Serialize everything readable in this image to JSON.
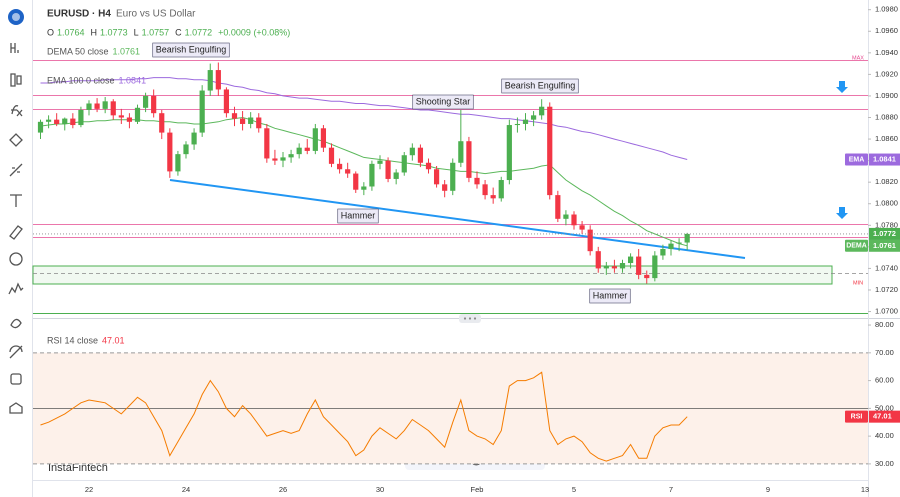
{
  "header": {
    "title": "EURUSD · H4",
    "subtitle": "Euro vs US Dollar",
    "ohlc_labels": [
      "O",
      "H",
      "L",
      "C"
    ],
    "change": "+0.0009 (+0.08%)",
    "watermark": "InstaFintech"
  },
  "chart_data": [
    {
      "type": "candlestick",
      "categories": [
        null,
        null,
        null,
        null,
        null,
        null,
        "22",
        null,
        null,
        null,
        null,
        null,
        null,
        null,
        null,
        null,
        null,
        null,
        "24",
        null,
        null,
        null,
        null,
        null,
        null,
        null,
        null,
        null,
        null,
        null,
        "26",
        null,
        null,
        null,
        null,
        null,
        null,
        null,
        null,
        null,
        null,
        null,
        "30",
        null,
        null,
        null,
        null,
        null,
        null,
        null,
        null,
        null,
        null,
        null,
        "Feb",
        null,
        null,
        null,
        null,
        null,
        null,
        null,
        null,
        null,
        null,
        null,
        "5",
        null,
        null,
        null,
        null,
        null,
        null,
        null,
        null,
        null,
        null,
        null,
        "7",
        null,
        null,
        null,
        null,
        null,
        null,
        null,
        null,
        null,
        null,
        null,
        "9",
        null,
        null,
        null,
        null,
        null,
        null,
        null,
        null,
        null,
        null,
        null,
        "13"
      ],
      "open": [
        1.0866,
        1.0876,
        1.0878,
        1.0874,
        1.0879,
        1.0873,
        1.0887,
        1.0893,
        1.0888,
        1.0895,
        1.0882,
        1.088,
        1.0876,
        1.0889,
        1.09,
        1.0884,
        1.0866,
        1.083,
        1.0846,
        1.0855,
        1.0866,
        1.0905,
        1.0924,
        1.0906,
        1.0884,
        1.0879,
        1.0874,
        1.088,
        1.087,
        1.0842,
        1.084,
        1.0843,
        1.0846,
        1.0852,
        1.0849,
        1.087,
        1.0852,
        1.0837,
        1.0832,
        1.0828,
        1.0813,
        1.0816,
        1.0837,
        1.084,
        1.0823,
        1.0829,
        1.0845,
        1.0852,
        1.0838,
        1.0832,
        1.0818,
        1.0812,
        1.0838,
        1.0858,
        1.0824,
        1.0818,
        1.0808,
        1.0805,
        1.0822,
        1.0873,
        1.0874,
        1.0878,
        1.0882,
        1.089,
        1.0808,
        1.0786,
        1.079,
        1.078,
        1.0776,
        1.0756,
        1.074,
        1.0742,
        1.074,
        1.0745,
        1.0751,
        1.0734,
        1.0731,
        1.0752,
        1.0758,
        1.0763,
        1.0764,
        null,
        null,
        null,
        null,
        null,
        null,
        null,
        null,
        null,
        null,
        null,
        null,
        null,
        null,
        null,
        null,
        null,
        null,
        null,
        null,
        null,
        null
      ],
      "high": [
        1.0878,
        1.0882,
        1.0884,
        1.088,
        1.0884,
        1.089,
        1.0896,
        1.0898,
        1.0899,
        1.0897,
        1.0888,
        1.0884,
        1.0892,
        1.0903,
        1.0906,
        1.0887,
        1.087,
        1.0849,
        1.0858,
        1.087,
        1.091,
        1.093,
        1.0931,
        1.0908,
        1.089,
        1.0886,
        1.0885,
        1.0884,
        1.0874,
        1.085,
        1.0848,
        1.085,
        1.0856,
        1.086,
        1.0874,
        1.0873,
        1.0856,
        1.0842,
        1.0838,
        1.083,
        1.082,
        1.084,
        1.0845,
        1.0843,
        1.0832,
        1.0848,
        1.0856,
        1.0855,
        1.0842,
        1.0835,
        1.0822,
        1.0842,
        1.0887,
        1.0862,
        1.083,
        1.0822,
        1.0815,
        1.0825,
        1.0878,
        1.088,
        1.0884,
        1.0886,
        1.0897,
        1.0894,
        1.0812,
        1.0794,
        1.0793,
        1.0784,
        1.078,
        1.076,
        1.0746,
        1.0748,
        1.0748,
        1.0754,
        1.0758,
        1.0738,
        1.0756,
        1.0762,
        1.0766,
        1.0768,
        1.0773,
        null,
        null,
        null,
        null,
        null,
        null,
        null,
        null,
        null,
        null,
        null,
        null,
        null,
        null,
        null,
        null,
        null,
        null,
        null,
        null,
        null,
        null
      ],
      "low": [
        1.086,
        1.087,
        1.0872,
        1.0868,
        1.087,
        1.0871,
        1.0882,
        1.0885,
        1.0884,
        1.0878,
        1.0874,
        1.087,
        1.0874,
        1.0885,
        1.088,
        1.086,
        1.0824,
        1.0826,
        1.0842,
        1.085,
        1.0862,
        1.09,
        1.09,
        1.088,
        1.0872,
        1.0868,
        1.087,
        1.0866,
        1.0838,
        1.0836,
        1.0834,
        1.0838,
        1.0842,
        1.0846,
        1.0846,
        1.0848,
        1.0834,
        1.0828,
        1.0824,
        1.081,
        1.0808,
        1.0812,
        1.0832,
        1.082,
        1.0818,
        1.0826,
        1.084,
        1.0834,
        1.0828,
        1.0815,
        1.0806,
        1.0808,
        1.0834,
        1.082,
        1.0814,
        1.0804,
        1.08,
        1.0802,
        1.0818,
        1.0866,
        1.0868,
        1.0872,
        1.0878,
        1.0804,
        1.0783,
        1.078,
        1.0776,
        1.0772,
        1.0752,
        1.0736,
        1.0734,
        1.0736,
        1.0736,
        1.074,
        1.073,
        1.0726,
        1.0728,
        1.0748,
        1.0752,
        1.0756,
        1.0757,
        null,
        null,
        null,
        null,
        null,
        null,
        null,
        null,
        null,
        null,
        null,
        null,
        null,
        null,
        null,
        null,
        null,
        null,
        null,
        null,
        null,
        null
      ],
      "close": [
        1.0876,
        1.0878,
        1.0874,
        1.0879,
        1.0873,
        1.0887,
        1.0893,
        1.0888,
        1.0895,
        1.0882,
        1.088,
        1.0876,
        1.0889,
        1.09,
        1.0884,
        1.0866,
        1.083,
        1.0846,
        1.0855,
        1.0866,
        1.0905,
        1.0924,
        1.0906,
        1.0884,
        1.0879,
        1.0874,
        1.088,
        1.087,
        1.0842,
        1.084,
        1.0843,
        1.0846,
        1.0852,
        1.0849,
        1.087,
        1.0852,
        1.0837,
        1.0832,
        1.0828,
        1.0813,
        1.0816,
        1.0837,
        1.084,
        1.0823,
        1.0829,
        1.0845,
        1.0852,
        1.0838,
        1.0832,
        1.0818,
        1.0812,
        1.0838,
        1.0858,
        1.0824,
        1.0818,
        1.0808,
        1.0805,
        1.0822,
        1.0873,
        1.0874,
        1.0878,
        1.0882,
        1.089,
        1.0808,
        1.0786,
        1.079,
        1.078,
        1.0776,
        1.0756,
        1.074,
        1.0742,
        1.074,
        1.0745,
        1.0751,
        1.0734,
        1.0731,
        1.0752,
        1.0758,
        1.0763,
        1.0764,
        1.0772,
        null,
        null,
        null,
        null,
        null,
        null,
        null,
        null,
        null,
        null,
        null,
        null,
        null,
        null,
        null,
        null,
        null,
        null,
        null,
        null,
        null,
        null
      ],
      "up_color": "#4caf50",
      "down_color": "#f23645",
      "price_color": "#4caf50",
      "series": [
        {
          "name": "DEMA 50 close",
          "badge_label": "DEMA",
          "color": "#5cb85c",
          "values": [
            1.0872,
            1.0873,
            1.0874,
            1.0874,
            1.0875,
            1.0876,
            1.0876,
            1.0877,
            1.0877,
            1.0878,
            1.0878,
            1.0878,
            1.0878,
            1.0877,
            1.0877,
            1.0876,
            1.0876,
            1.0875,
            1.0875,
            1.0874,
            1.0874,
            1.0875,
            1.0876,
            1.0878,
            1.0879,
            1.088,
            1.0878,
            1.0875,
            1.0873,
            1.087,
            1.0868,
            1.0866,
            1.0864,
            1.0862,
            1.086,
            1.0858,
            1.0855,
            1.0852,
            1.0849,
            1.0846,
            1.0843,
            1.0842,
            1.0841,
            1.084,
            1.0839,
            1.0838,
            1.0837,
            1.0836,
            1.0835,
            1.0833,
            1.0832,
            1.0831,
            1.083,
            1.083,
            1.0829,
            1.0828,
            1.0829,
            1.083,
            1.083,
            1.0831,
            1.0832,
            1.0833,
            1.0835,
            1.0836,
            1.0829,
            1.0822,
            1.0817,
            1.0812,
            1.0808,
            1.0803,
            1.0798,
            1.0793,
            1.0789,
            1.0784,
            1.078,
            1.0775,
            1.0772,
            1.0769,
            1.0766,
            1.0763,
            1.0761,
            null,
            null,
            null,
            null,
            null,
            null,
            null,
            null,
            null,
            null,
            null,
            null,
            null,
            null,
            null,
            null,
            null,
            null,
            null,
            null,
            null,
            null
          ]
        },
        {
          "name": "EMA 100 0 close",
          "badge_label": "EMA",
          "color": "#9c6ade",
          "values": [
            1.0912,
            1.0912,
            1.0913,
            1.0913,
            1.0914,
            1.0914,
            1.0914,
            1.0914,
            1.0915,
            1.0915,
            1.0915,
            1.0915,
            1.0916,
            1.0916,
            1.0917,
            1.0917,
            1.0917,
            1.0916,
            1.0916,
            1.0915,
            1.0915,
            1.0914,
            1.0912,
            1.0911,
            1.0909,
            1.0908,
            1.0906,
            1.0905,
            1.0903,
            1.0902,
            1.09,
            1.0899,
            1.0898,
            1.0898,
            1.0897,
            1.0896,
            1.0895,
            1.0895,
            1.0894,
            1.0893,
            1.0893,
            1.0892,
            1.0891,
            1.0891,
            1.089,
            1.0889,
            1.0888,
            1.0887,
            1.0887,
            1.0886,
            1.0885,
            1.0884,
            1.0883,
            1.0883,
            1.0882,
            1.0881,
            1.088,
            1.0879,
            1.0879,
            1.0878,
            1.0877,
            1.0876,
            1.0875,
            1.0874,
            1.0872,
            1.0871,
            1.0869,
            1.0867,
            1.0866,
            1.0864,
            1.0862,
            1.086,
            1.0858,
            1.0856,
            1.0854,
            1.0852,
            1.085,
            1.0848,
            1.0845,
            1.0843,
            1.0841,
            null,
            null,
            null,
            null,
            null,
            null,
            null,
            null,
            null,
            null,
            null,
            null,
            null,
            null,
            null,
            null,
            null,
            null,
            null,
            null,
            null,
            null
          ]
        }
      ],
      "annotations": [
        "Bearish Engulfing",
        "Shooting Star",
        "Bearish Engulfing",
        "Hammer",
        "Hammer"
      ],
      "markers": [
        "MAX",
        "MIN"
      ],
      "ylim": [
        1.0694,
        1.0989
      ],
      "yticks": [
        {
          "value": 1.098,
          "label": "1.0980"
        },
        {
          "value": 1.096,
          "label": "1.0960"
        },
        {
          "value": 1.094,
          "label": "1.0940"
        },
        {
          "value": 1.092,
          "label": "1.0920"
        },
        {
          "value": 1.09,
          "label": "1.0900"
        },
        {
          "value": 1.088,
          "label": "1.0880"
        },
        {
          "value": 1.086,
          "label": "1.0860"
        },
        {
          "value": 1.084,
          "label": "1.0840"
        },
        {
          "value": 1.082,
          "label": "1.0820"
        },
        {
          "value": 1.08,
          "label": "1.0800"
        },
        {
          "value": 1.078,
          "label": "1.0780"
        },
        {
          "value": 1.076,
          "label": "1.0760"
        },
        {
          "value": 1.074,
          "label": "1.0740"
        },
        {
          "value": 1.072,
          "label": "1.0720"
        },
        {
          "value": 1.07,
          "label": "1.0700"
        }
      ]
    },
    {
      "type": "line",
      "series": [
        {
          "name": "RSI 14 close",
          "badge_label": "RSI",
          "color": "#f57c00",
          "values": [
            44,
            45,
            46.5,
            48,
            50,
            52,
            53,
            52.5,
            52,
            50,
            48,
            51,
            54,
            52,
            47,
            42,
            33,
            38,
            43,
            48,
            55,
            60,
            56,
            50,
            47,
            51,
            48,
            44,
            40,
            41,
            42,
            41,
            42,
            48,
            53,
            47,
            44,
            41,
            38,
            33,
            35,
            40,
            43,
            41,
            39,
            42,
            46,
            44,
            42,
            39,
            36,
            45,
            53,
            42,
            40,
            39,
            37,
            42,
            58,
            60,
            60,
            61,
            63,
            42,
            37,
            39,
            40,
            38,
            34,
            32,
            31,
            32,
            33,
            37,
            32,
            32,
            40,
            43,
            44,
            44,
            47.01,
            null,
            null,
            null,
            null,
            null,
            null,
            null,
            null,
            null,
            null,
            null,
            null,
            null,
            null,
            null,
            null,
            null,
            null,
            null,
            null,
            null,
            null
          ]
        }
      ],
      "overbought": 70,
      "midline": 50,
      "oversold": 30,
      "band_color": "#fdf1ea",
      "ylim": [
        22.4,
        81.1
      ],
      "yticks": [
        {
          "value": 80,
          "label": "80.00"
        },
        {
          "value": 70,
          "label": "70.00"
        },
        {
          "value": 60,
          "label": "60.00"
        },
        {
          "value": 50,
          "label": "50.00"
        },
        {
          "value": 40,
          "label": "40.00"
        },
        {
          "value": 30,
          "label": "30.00"
        }
      ]
    }
  ]
}
